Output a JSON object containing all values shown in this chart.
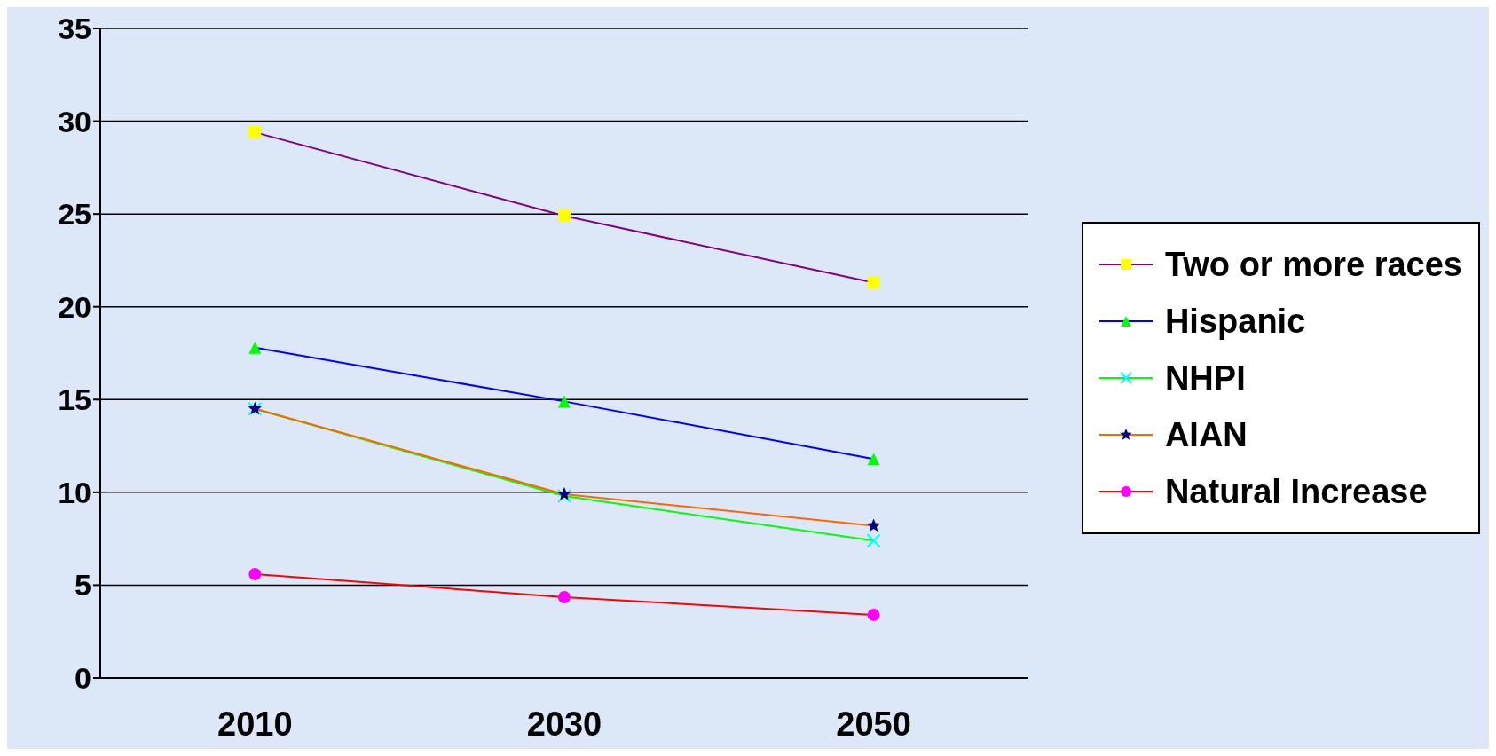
{
  "chart_data": {
    "type": "line",
    "categories": [
      "2010",
      "2030",
      "2050"
    ],
    "ylim": [
      0,
      35
    ],
    "yticks": [
      0,
      5,
      10,
      15,
      20,
      25,
      30,
      35
    ],
    "grid": "y",
    "legend": "right",
    "series": [
      {
        "name": "Two or more races",
        "color": "#800080",
        "colors": [
          "#ffff00",
          "#ffff00",
          "#ffff00"
        ],
        "marker": "square",
        "values": [
          29.4,
          24.9,
          21.3
        ]
      },
      {
        "name": "Hispanic",
        "color": "#0000ff",
        "colors": [
          "#00ff00",
          "#00ff00",
          "#00ff00"
        ],
        "marker": "triangle",
        "values": [
          17.8,
          14.9,
          11.8
        ]
      },
      {
        "name": "NHPI",
        "color": "#00ff00",
        "colors": [
          "#00ffff",
          "#00ffff",
          "#00ffff"
        ],
        "marker": "cross",
        "values": [
          14.5,
          9.8,
          7.4
        ]
      },
      {
        "name": "AIAN",
        "color": "#ff6600",
        "colors": [
          "#000080",
          "#000080",
          "#000080"
        ],
        "marker": "star",
        "values": [
          14.5,
          9.9,
          8.2
        ]
      },
      {
        "name": "Natural Increase",
        "color": "#ff0000",
        "colors": [
          "#ff00ff",
          "#ff00ff",
          "#ff00ff"
        ],
        "marker": "circle",
        "values": [
          5.6,
          4.35,
          3.4
        ]
      }
    ]
  }
}
